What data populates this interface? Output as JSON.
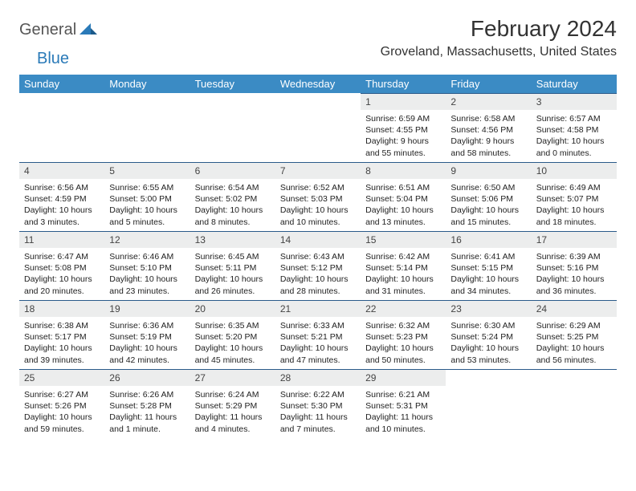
{
  "logo": {
    "general": "General",
    "blue": "Blue"
  },
  "title": "February 2024",
  "location": "Groveland, Massachusetts, United States",
  "colors": {
    "header_bg": "#3b8bc4",
    "header_text": "#ffffff",
    "daynum_bg": "#eceded",
    "rule": "#2a5a8a",
    "logo_blue": "#2a7ab8",
    "logo_gray": "#555555"
  },
  "day_headers": [
    "Sunday",
    "Monday",
    "Tuesday",
    "Wednesday",
    "Thursday",
    "Friday",
    "Saturday"
  ],
  "weeks": [
    [
      null,
      null,
      null,
      null,
      {
        "n": "1",
        "sr": "Sunrise: 6:59 AM",
        "ss": "Sunset: 4:55 PM",
        "dl": "Daylight: 9 hours and 55 minutes."
      },
      {
        "n": "2",
        "sr": "Sunrise: 6:58 AM",
        "ss": "Sunset: 4:56 PM",
        "dl": "Daylight: 9 hours and 58 minutes."
      },
      {
        "n": "3",
        "sr": "Sunrise: 6:57 AM",
        "ss": "Sunset: 4:58 PM",
        "dl": "Daylight: 10 hours and 0 minutes."
      }
    ],
    [
      {
        "n": "4",
        "sr": "Sunrise: 6:56 AM",
        "ss": "Sunset: 4:59 PM",
        "dl": "Daylight: 10 hours and 3 minutes."
      },
      {
        "n": "5",
        "sr": "Sunrise: 6:55 AM",
        "ss": "Sunset: 5:00 PM",
        "dl": "Daylight: 10 hours and 5 minutes."
      },
      {
        "n": "6",
        "sr": "Sunrise: 6:54 AM",
        "ss": "Sunset: 5:02 PM",
        "dl": "Daylight: 10 hours and 8 minutes."
      },
      {
        "n": "7",
        "sr": "Sunrise: 6:52 AM",
        "ss": "Sunset: 5:03 PM",
        "dl": "Daylight: 10 hours and 10 minutes."
      },
      {
        "n": "8",
        "sr": "Sunrise: 6:51 AM",
        "ss": "Sunset: 5:04 PM",
        "dl": "Daylight: 10 hours and 13 minutes."
      },
      {
        "n": "9",
        "sr": "Sunrise: 6:50 AM",
        "ss": "Sunset: 5:06 PM",
        "dl": "Daylight: 10 hours and 15 minutes."
      },
      {
        "n": "10",
        "sr": "Sunrise: 6:49 AM",
        "ss": "Sunset: 5:07 PM",
        "dl": "Daylight: 10 hours and 18 minutes."
      }
    ],
    [
      {
        "n": "11",
        "sr": "Sunrise: 6:47 AM",
        "ss": "Sunset: 5:08 PM",
        "dl": "Daylight: 10 hours and 20 minutes."
      },
      {
        "n": "12",
        "sr": "Sunrise: 6:46 AM",
        "ss": "Sunset: 5:10 PM",
        "dl": "Daylight: 10 hours and 23 minutes."
      },
      {
        "n": "13",
        "sr": "Sunrise: 6:45 AM",
        "ss": "Sunset: 5:11 PM",
        "dl": "Daylight: 10 hours and 26 minutes."
      },
      {
        "n": "14",
        "sr": "Sunrise: 6:43 AM",
        "ss": "Sunset: 5:12 PM",
        "dl": "Daylight: 10 hours and 28 minutes."
      },
      {
        "n": "15",
        "sr": "Sunrise: 6:42 AM",
        "ss": "Sunset: 5:14 PM",
        "dl": "Daylight: 10 hours and 31 minutes."
      },
      {
        "n": "16",
        "sr": "Sunrise: 6:41 AM",
        "ss": "Sunset: 5:15 PM",
        "dl": "Daylight: 10 hours and 34 minutes."
      },
      {
        "n": "17",
        "sr": "Sunrise: 6:39 AM",
        "ss": "Sunset: 5:16 PM",
        "dl": "Daylight: 10 hours and 36 minutes."
      }
    ],
    [
      {
        "n": "18",
        "sr": "Sunrise: 6:38 AM",
        "ss": "Sunset: 5:17 PM",
        "dl": "Daylight: 10 hours and 39 minutes."
      },
      {
        "n": "19",
        "sr": "Sunrise: 6:36 AM",
        "ss": "Sunset: 5:19 PM",
        "dl": "Daylight: 10 hours and 42 minutes."
      },
      {
        "n": "20",
        "sr": "Sunrise: 6:35 AM",
        "ss": "Sunset: 5:20 PM",
        "dl": "Daylight: 10 hours and 45 minutes."
      },
      {
        "n": "21",
        "sr": "Sunrise: 6:33 AM",
        "ss": "Sunset: 5:21 PM",
        "dl": "Daylight: 10 hours and 47 minutes."
      },
      {
        "n": "22",
        "sr": "Sunrise: 6:32 AM",
        "ss": "Sunset: 5:23 PM",
        "dl": "Daylight: 10 hours and 50 minutes."
      },
      {
        "n": "23",
        "sr": "Sunrise: 6:30 AM",
        "ss": "Sunset: 5:24 PM",
        "dl": "Daylight: 10 hours and 53 minutes."
      },
      {
        "n": "24",
        "sr": "Sunrise: 6:29 AM",
        "ss": "Sunset: 5:25 PM",
        "dl": "Daylight: 10 hours and 56 minutes."
      }
    ],
    [
      {
        "n": "25",
        "sr": "Sunrise: 6:27 AM",
        "ss": "Sunset: 5:26 PM",
        "dl": "Daylight: 10 hours and 59 minutes."
      },
      {
        "n": "26",
        "sr": "Sunrise: 6:26 AM",
        "ss": "Sunset: 5:28 PM",
        "dl": "Daylight: 11 hours and 1 minute."
      },
      {
        "n": "27",
        "sr": "Sunrise: 6:24 AM",
        "ss": "Sunset: 5:29 PM",
        "dl": "Daylight: 11 hours and 4 minutes."
      },
      {
        "n": "28",
        "sr": "Sunrise: 6:22 AM",
        "ss": "Sunset: 5:30 PM",
        "dl": "Daylight: 11 hours and 7 minutes."
      },
      {
        "n": "29",
        "sr": "Sunrise: 6:21 AM",
        "ss": "Sunset: 5:31 PM",
        "dl": "Daylight: 11 hours and 10 minutes."
      },
      null,
      null
    ]
  ]
}
